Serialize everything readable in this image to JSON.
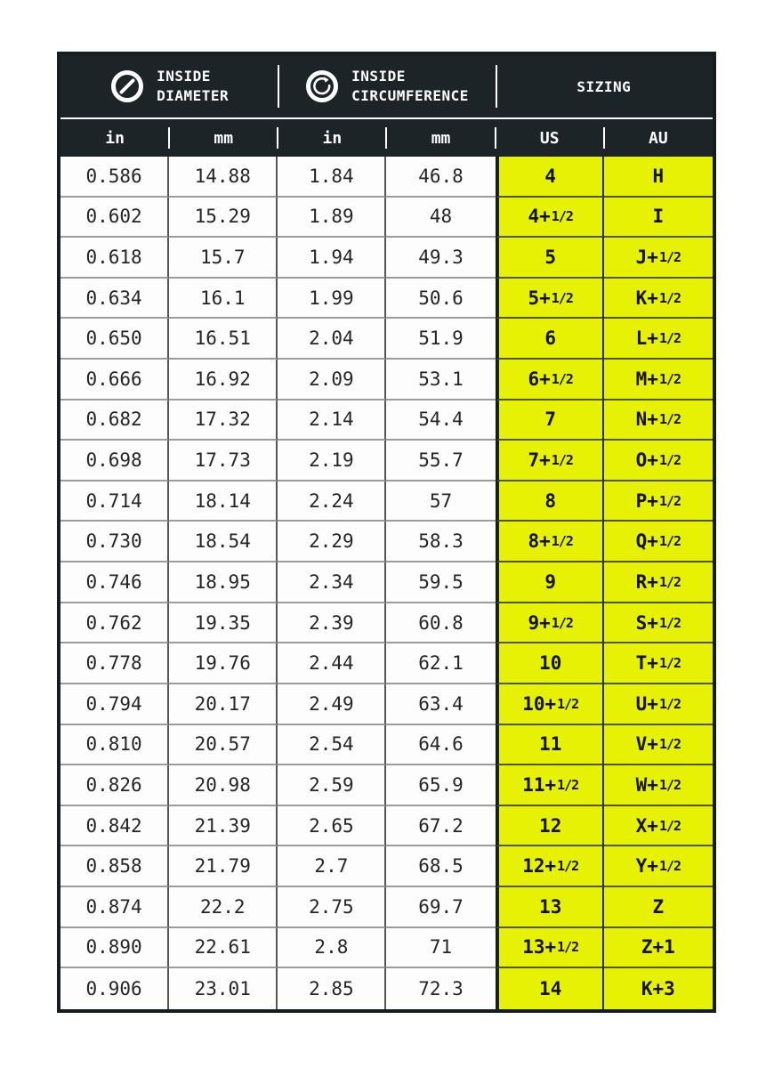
{
  "colors": {
    "page_bg": "#ffffff",
    "header_bg": "#1c2428",
    "header_text": "#ffffff",
    "highlight_yellow": "#e6f104",
    "data_text": "#252525",
    "outer_border": "#151d21",
    "grid_vertical": "#565656",
    "grid_horizontal": "#9b9b9b"
  },
  "chart_data": {
    "type": "table",
    "column_groups": [
      {
        "icon": "diameter-icon",
        "line1": "INSIDE",
        "line2": "DIAMETER",
        "columns": [
          "in",
          "mm"
        ]
      },
      {
        "icon": "circumference-icon",
        "line1": "INSIDE",
        "line2": "CIRCUMFERENCE",
        "columns": [
          "in",
          "mm"
        ]
      },
      {
        "icon": "",
        "line1": "SIZING",
        "line2": "",
        "columns": [
          "US",
          "AU"
        ]
      }
    ],
    "columns": [
      "in",
      "mm",
      "in",
      "mm",
      "US",
      "AU"
    ],
    "rows": [
      [
        "0.586",
        "14.88",
        "1.84",
        "46.8",
        "4",
        "H"
      ],
      [
        "0.602",
        "15.29",
        "1.89",
        "48",
        "4+1/2",
        "I"
      ],
      [
        "0.618",
        "15.7",
        "1.94",
        "49.3",
        "5",
        "J+1/2"
      ],
      [
        "0.634",
        "16.1",
        "1.99",
        "50.6",
        "5+1/2",
        "K+1/2"
      ],
      [
        "0.650",
        "16.51",
        "2.04",
        "51.9",
        "6",
        "L+1/2"
      ],
      [
        "0.666",
        "16.92",
        "2.09",
        "53.1",
        "6+1/2",
        "M+1/2"
      ],
      [
        "0.682",
        "17.32",
        "2.14",
        "54.4",
        "7",
        "N+1/2"
      ],
      [
        "0.698",
        "17.73",
        "2.19",
        "55.7",
        "7+1/2",
        "O+1/2"
      ],
      [
        "0.714",
        "18.14",
        "2.24",
        "57",
        "8",
        "P+1/2"
      ],
      [
        "0.730",
        "18.54",
        "2.29",
        "58.3",
        "8+1/2",
        "Q+1/2"
      ],
      [
        "0.746",
        "18.95",
        "2.34",
        "59.5",
        "9",
        "R+1/2"
      ],
      [
        "0.762",
        "19.35",
        "2.39",
        "60.8",
        "9+1/2",
        "S+1/2"
      ],
      [
        "0.778",
        "19.76",
        "2.44",
        "62.1",
        "10",
        "T+1/2"
      ],
      [
        "0.794",
        "20.17",
        "2.49",
        "63.4",
        "10+1/2",
        "U+1/2"
      ],
      [
        "0.810",
        "20.57",
        "2.54",
        "64.6",
        "11",
        "V+1/2"
      ],
      [
        "0.826",
        "20.98",
        "2.59",
        "65.9",
        "11+1/2",
        "W+1/2"
      ],
      [
        "0.842",
        "21.39",
        "2.65",
        "67.2",
        "12",
        "X+1/2"
      ],
      [
        "0.858",
        "21.79",
        "2.7",
        "68.5",
        "12+1/2",
        "Y+1/2"
      ],
      [
        "0.874",
        "22.2",
        "2.75",
        "69.7",
        "13",
        "Z"
      ],
      [
        "0.890",
        "22.61",
        "2.8",
        "71",
        "13+1/2",
        "Z+1"
      ],
      [
        "0.906",
        "23.01",
        "2.85",
        "72.3",
        "14",
        "K+3"
      ]
    ]
  }
}
